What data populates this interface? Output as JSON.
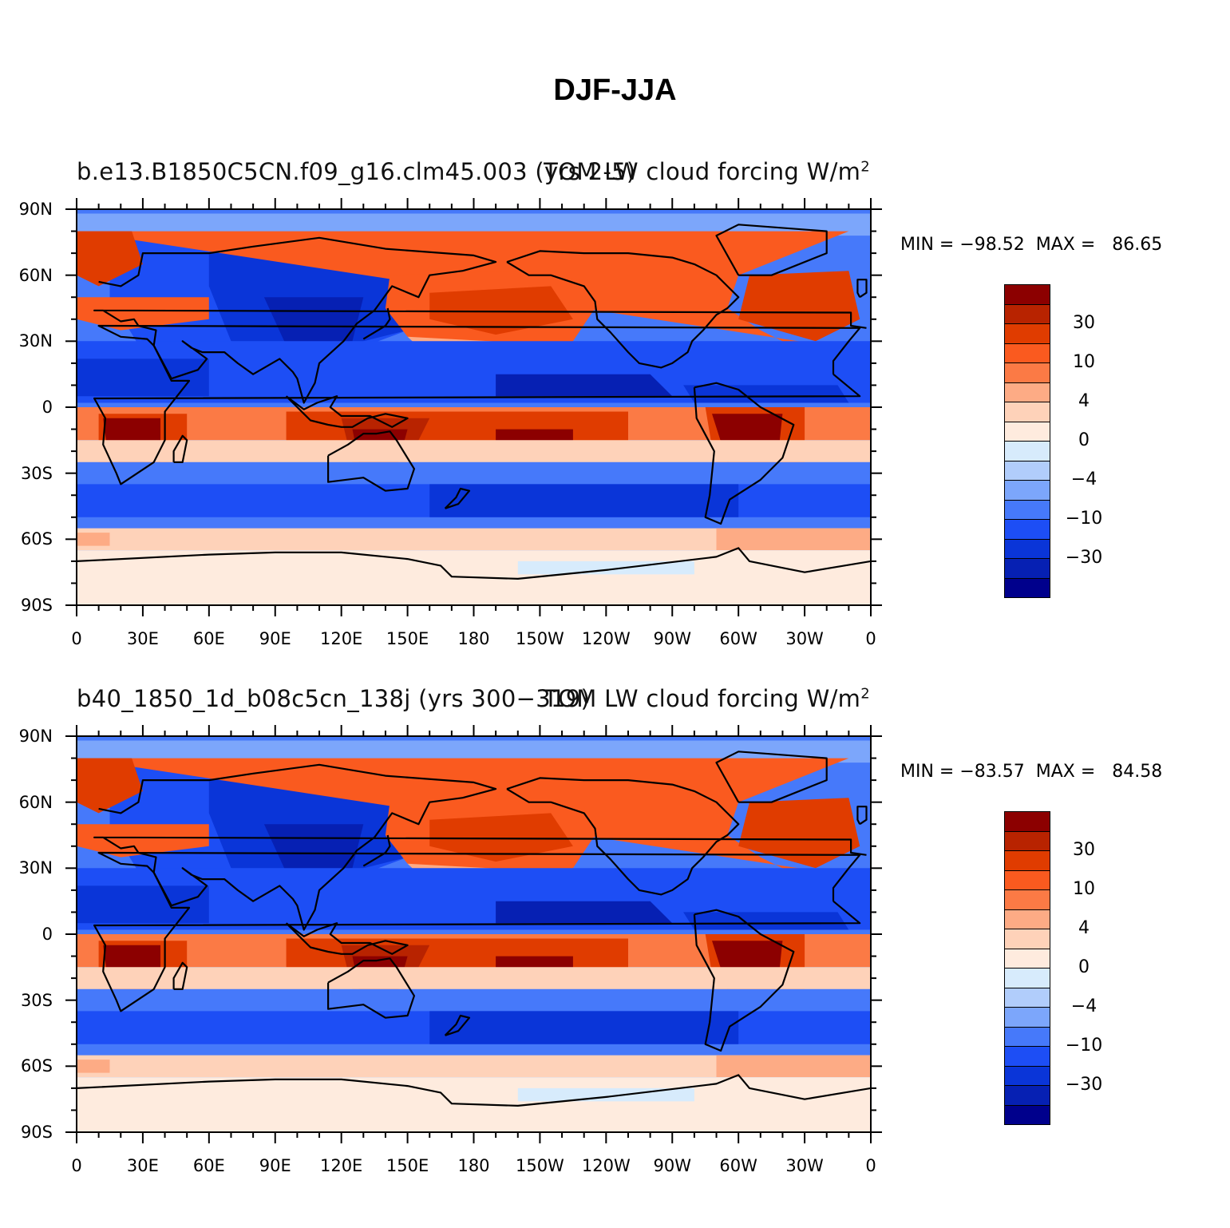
{
  "figure": {
    "title": "DJF-JJA"
  },
  "panels": [
    {
      "id": "top",
      "case_name": "b.e13.B1850C5CN.f09_g16.clm45.003 (yrs 2-5)",
      "overlay_text": "TOM LW cloud forcing",
      "units_base": "W/m",
      "units_exp": "2",
      "min_max": "MIN = −98.52  MAX =   86.65"
    },
    {
      "id": "bottom",
      "case_name": "b40_1850_1d_b08c5cn_138j (yrs 300−319)",
      "overlay_text": "TOM LW cloud forcing",
      "units_base": "W/m",
      "units_exp": "2",
      "min_max": "MIN = −83.57  MAX =   84.58"
    }
  ],
  "axes": {
    "lat_labels": [
      "90N",
      "60N",
      "30N",
      "0",
      "30S",
      "60S",
      "90S"
    ],
    "lon_labels": [
      "0",
      "30E",
      "60E",
      "90E",
      "120E",
      "150E",
      "180",
      "150W",
      "120W",
      "90W",
      "60W",
      "30W",
      "0"
    ]
  },
  "colorbar": {
    "labels": [
      "30",
      "10",
      "4",
      "0",
      "−4",
      "−10",
      "−30"
    ],
    "colors": [
      "#8c0000",
      "#b82300",
      "#e03c00",
      "#fa5a1f",
      "#fb7a45",
      "#fdab85",
      "#fed2b9",
      "#feebde",
      "#d7ebfc",
      "#b1cdfb",
      "#7ca6fb",
      "#4679fa",
      "#1d4ef5",
      "#0a35d8",
      "#0620b3",
      "#00008c"
    ]
  }
}
